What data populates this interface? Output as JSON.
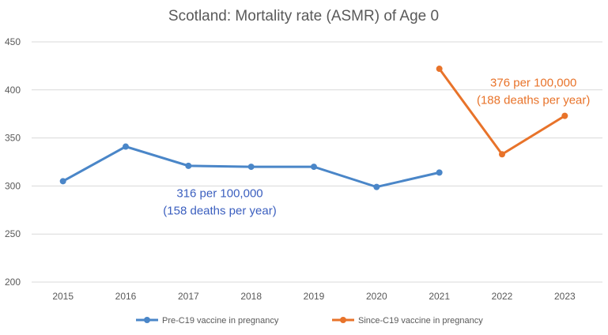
{
  "chart_data": {
    "type": "line",
    "title": "Scotland: Mortality rate (ASMR) of Age 0",
    "xlabel": "",
    "ylabel": "",
    "categories": [
      "2015",
      "2016",
      "2017",
      "2018",
      "2019",
      "2020",
      "2021",
      "2022",
      "2023"
    ],
    "ylim": [
      200,
      450
    ],
    "yticks": [
      200,
      250,
      300,
      350,
      400,
      450
    ],
    "grid": true,
    "legend_position": "bottom",
    "series": [
      {
        "name": "Pre-C19 vaccine in pregnancy",
        "color": "#4a86c8",
        "values": [
          305,
          341,
          321,
          320,
          320,
          299,
          314,
          null,
          null
        ]
      },
      {
        "name": "Since-C19 vaccine in pregnancy",
        "color": "#e8732a",
        "values": [
          null,
          null,
          null,
          null,
          null,
          null,
          422,
          333,
          373
        ]
      }
    ],
    "annotations": [
      {
        "lines": [
          "316 per 100,000",
          "(158 deaths per year)"
        ],
        "color": "#3b5fbf",
        "x": "2017.5",
        "y": 300
      },
      {
        "lines": [
          "376 per 100,000",
          "(188 deaths per year)"
        ],
        "color": "#e8732a",
        "x": "2022.5",
        "y": 415
      }
    ]
  }
}
